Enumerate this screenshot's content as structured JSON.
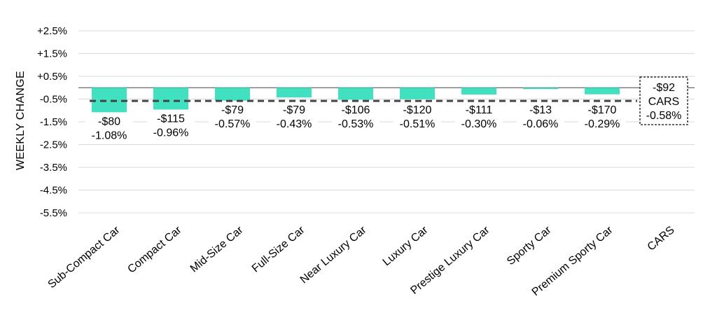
{
  "chart_data": {
    "type": "bar",
    "ylabel": "WEEKLY CHANGE",
    "ylim": [
      -5.5,
      2.5
    ],
    "yticks": [
      2.5,
      1.5,
      0.5,
      -0.5,
      -1.5,
      -2.5,
      -3.5,
      -4.5,
      -5.5
    ],
    "ytick_labels": [
      "+2.5%",
      "+1.5%",
      "+0.5%",
      "-0.5%",
      "-1.5%",
      "-2.5%",
      "-3.5%",
      "-4.5%",
      "-5.5%"
    ],
    "grid": true,
    "bar_color": "#40E0C0",
    "categories": [
      "Sub-Compact Car",
      "Compact Car",
      "Mid-Size Car",
      "Full-Size Car",
      "Near Luxury Car",
      "Luxury Car",
      "Prestige Luxury Car",
      "Sporty Car",
      "Premium Sporty Car",
      "CARS"
    ],
    "values": [
      -1.08,
      -0.96,
      -0.57,
      -0.43,
      -0.53,
      -0.51,
      -0.3,
      -0.06,
      -0.29,
      null
    ],
    "dollar_labels": [
      "-$80",
      "-$115",
      "-$79",
      "-$79",
      "-$106",
      "-$120",
      "-$111",
      "-$13",
      "-$170",
      "-$92"
    ],
    "percent_labels": [
      "-1.08%",
      "-0.96%",
      "-0.57%",
      "-0.43%",
      "-0.53%",
      "-0.51%",
      "-0.30%",
      "-0.06%",
      "-0.29%",
      "-0.58%"
    ],
    "reference_line": {
      "value": -0.58,
      "style": "dashed"
    },
    "total_box": {
      "dollar": "-$92",
      "name": "CARS",
      "percent": "-0.58%"
    }
  }
}
